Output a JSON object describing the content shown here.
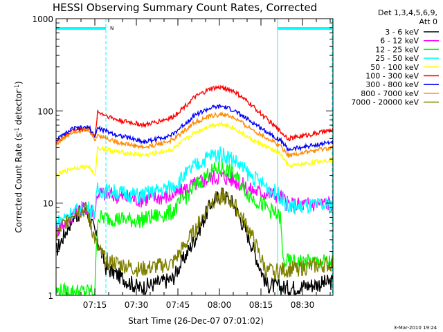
{
  "chart_data": {
    "type": "line",
    "title": "HESSI Observing Summary Count Rates, Corrected",
    "xlabel": "Start Time (26-Dec-07 07:01:02)",
    "ylabel_parts": {
      "main": "Corrected Count Rate (s",
      "sup": "-1",
      "tail": " detector",
      "sup2": "-1",
      "close": ")"
    },
    "yscale": "log",
    "ylim": [
      1,
      1000
    ],
    "y_ticks": [
      {
        "value": 1,
        "label": "1"
      },
      {
        "value": 10,
        "label": "10"
      },
      {
        "value": 100,
        "label": "100"
      },
      {
        "value": 1000,
        "label": "1000"
      }
    ],
    "xlim_minutes": [
      0,
      100
    ],
    "x_ticks": [
      {
        "value": 14,
        "label": "07:15"
      },
      {
        "value": 29,
        "label": "07:30"
      },
      {
        "value": 44,
        "label": "07:45"
      },
      {
        "value": 59,
        "label": "08:00"
      },
      {
        "value": 74,
        "label": "08:15"
      },
      {
        "value": 89,
        "label": "08:30"
      }
    ],
    "legend_header": [
      "Det 1,3,4,5,6,9,",
      "Att 0"
    ],
    "legend_position": "outside-right",
    "series": [
      {
        "name": "3 - 6 keV",
        "color": "#000000",
        "points": [
          [
            0,
            3
          ],
          [
            6,
            7
          ],
          [
            11,
            8.5
          ],
          [
            15,
            4
          ],
          [
            18,
            2
          ],
          [
            30,
            1.2
          ],
          [
            42,
            1.5
          ],
          [
            50,
            4
          ],
          [
            56,
            10
          ],
          [
            60,
            12.5
          ],
          [
            64,
            10
          ],
          [
            70,
            4
          ],
          [
            76,
            1.3
          ],
          [
            84,
            1.2
          ],
          [
            100,
            1.4
          ]
        ]
      },
      {
        "name": "6 - 12 keV",
        "color": "#ff00ff",
        "points": [
          [
            0,
            5
          ],
          [
            6,
            7.5
          ],
          [
            11,
            9
          ],
          [
            14,
            8
          ],
          [
            15,
            13
          ],
          [
            30,
            11
          ],
          [
            42,
            12
          ],
          [
            50,
            16
          ],
          [
            56,
            19
          ],
          [
            60,
            19.5
          ],
          [
            64,
            18
          ],
          [
            70,
            14
          ],
          [
            81,
            12
          ],
          [
            84,
            9.5
          ],
          [
            100,
            10
          ]
        ]
      },
      {
        "name": "12 - 25 keV",
        "color": "#00ff00",
        "points": [
          [
            0,
            1.1
          ],
          [
            14,
            1.1
          ],
          [
            15,
            7
          ],
          [
            30,
            6.5
          ],
          [
            42,
            8
          ],
          [
            50,
            15
          ],
          [
            56,
            22
          ],
          [
            60,
            24
          ],
          [
            64,
            21
          ],
          [
            70,
            12
          ],
          [
            81,
            7
          ],
          [
            82,
            2.3
          ],
          [
            100,
            2.3
          ]
        ]
      },
      {
        "name": "25 - 50 keV",
        "color": "#00ffff",
        "points": [
          [
            0,
            6
          ],
          [
            6,
            8
          ],
          [
            11,
            9
          ],
          [
            14,
            8
          ],
          [
            15,
            14
          ],
          [
            30,
            12
          ],
          [
            42,
            15
          ],
          [
            50,
            25
          ],
          [
            56,
            33
          ],
          [
            60,
            34
          ],
          [
            64,
            30
          ],
          [
            70,
            20
          ],
          [
            81,
            12
          ],
          [
            84,
            9
          ],
          [
            100,
            9.5
          ]
        ]
      },
      {
        "name": "50 - 100 keV",
        "color": "#ffff00",
        "points": [
          [
            0,
            20
          ],
          [
            6,
            24
          ],
          [
            12,
            25
          ],
          [
            14,
            19
          ],
          [
            15,
            40
          ],
          [
            22,
            36
          ],
          [
            32,
            33
          ],
          [
            42,
            38
          ],
          [
            50,
            58
          ],
          [
            56,
            70
          ],
          [
            60,
            73
          ],
          [
            64,
            66
          ],
          [
            70,
            50
          ],
          [
            81,
            34
          ],
          [
            84,
            25
          ],
          [
            100,
            30
          ]
        ]
      },
      {
        "name": "100 - 300 keV",
        "color": "#ff0000",
        "points": [
          [
            0,
            45
          ],
          [
            6,
            62
          ],
          [
            12,
            64
          ],
          [
            14,
            50
          ],
          [
            15,
            98
          ],
          [
            22,
            80
          ],
          [
            32,
            70
          ],
          [
            42,
            85
          ],
          [
            50,
            140
          ],
          [
            56,
            175
          ],
          [
            60,
            180
          ],
          [
            64,
            165
          ],
          [
            70,
            120
          ],
          [
            81,
            60
          ],
          [
            84,
            50
          ],
          [
            100,
            62
          ]
        ]
      },
      {
        "name": "300 - 800 keV",
        "color": "#0000ff",
        "points": [
          [
            0,
            48
          ],
          [
            6,
            64
          ],
          [
            12,
            66
          ],
          [
            14,
            52
          ],
          [
            15,
            65
          ],
          [
            22,
            55
          ],
          [
            32,
            46
          ],
          [
            42,
            55
          ],
          [
            50,
            90
          ],
          [
            56,
            108
          ],
          [
            60,
            112
          ],
          [
            64,
            102
          ],
          [
            70,
            78
          ],
          [
            81,
            48
          ],
          [
            84,
            38
          ],
          [
            100,
            46
          ]
        ]
      },
      {
        "name": "800 - 7000 keV",
        "color": "#ff8c00",
        "points": [
          [
            0,
            44
          ],
          [
            6,
            60
          ],
          [
            12,
            62
          ],
          [
            14,
            48
          ],
          [
            15,
            55
          ],
          [
            22,
            46
          ],
          [
            32,
            40
          ],
          [
            42,
            48
          ],
          [
            50,
            75
          ],
          [
            56,
            88
          ],
          [
            60,
            92
          ],
          [
            64,
            85
          ],
          [
            70,
            65
          ],
          [
            81,
            42
          ],
          [
            84,
            33
          ],
          [
            100,
            40
          ]
        ]
      },
      {
        "name": "7000 - 20000 keV",
        "color": "#808000",
        "points": [
          [
            0,
            4.5
          ],
          [
            6,
            8
          ],
          [
            11,
            8.5
          ],
          [
            15,
            3.2
          ],
          [
            18,
            2.4
          ],
          [
            30,
            1.9
          ],
          [
            42,
            2.2
          ],
          [
            50,
            5
          ],
          [
            56,
            10.5
          ],
          [
            60,
            12
          ],
          [
            64,
            10
          ],
          [
            70,
            5
          ],
          [
            76,
            1.8
          ],
          [
            84,
            1.9
          ],
          [
            100,
            2.2
          ]
        ]
      }
    ],
    "annotations": {
      "marker_letter": "N",
      "flag_color": "#00ffff"
    },
    "footer_timestamp": "3-Mar-2010 19:24"
  }
}
